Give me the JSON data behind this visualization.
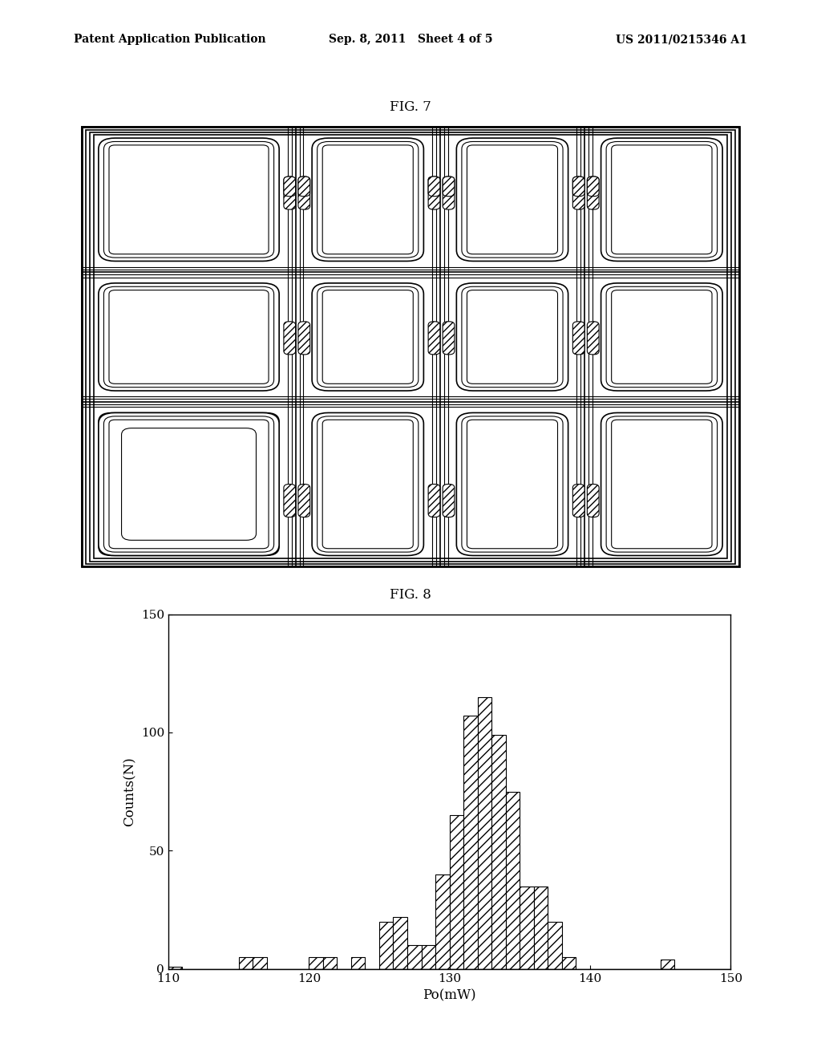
{
  "header_left": "Patent Application Publication",
  "header_mid": "Sep. 8, 2011   Sheet 4 of 5",
  "header_right": "US 2011/0215346 A1",
  "fig7_label": "FIG. 7",
  "fig8_label": "FIG. 8",
  "hist_xlabel": "Po(mW)",
  "hist_ylabel": "Counts(N)",
  "hist_xlim": [
    110,
    150
  ],
  "hist_ylim": [
    0,
    150
  ],
  "hist_xticks": [
    110,
    120,
    130,
    140,
    150
  ],
  "hist_yticks": [
    0,
    50,
    100,
    150
  ],
  "bar_left_edges": [
    110,
    111,
    112,
    113,
    114,
    115,
    116,
    117,
    118,
    119,
    120,
    121,
    122,
    123,
    124,
    125,
    126,
    127,
    128,
    129,
    130,
    131,
    132,
    133,
    134,
    135,
    136,
    137,
    138,
    139,
    140,
    141,
    142,
    143,
    144,
    145,
    146,
    147,
    148,
    149
  ],
  "bar_heights": [
    1,
    0,
    0,
    0,
    0,
    5,
    5,
    0,
    0,
    0,
    5,
    5,
    0,
    5,
    0,
    20,
    22,
    10,
    10,
    40,
    65,
    107,
    115,
    99,
    75,
    35,
    35,
    20,
    5,
    0,
    0,
    0,
    0,
    0,
    0,
    4,
    0,
    0,
    0,
    0
  ],
  "bar_width": 1,
  "hatch_pattern": "///",
  "bar_facecolor": "#ffffff",
  "bar_edgecolor": "#000000",
  "background_color": "#ffffff",
  "header_fontsize": 10,
  "title_fontsize": 12,
  "axis_fontsize": 12,
  "tick_fontsize": 11
}
